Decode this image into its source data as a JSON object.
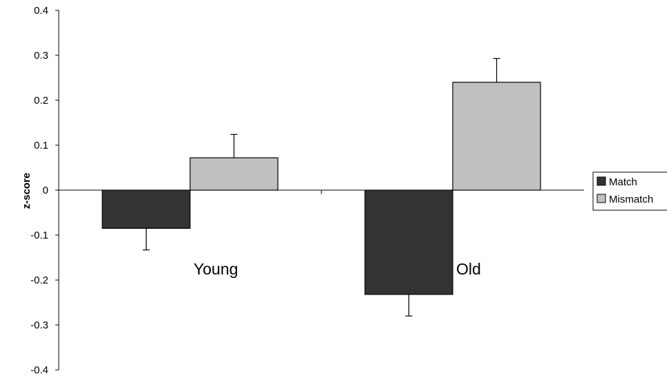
{
  "chart_data": {
    "type": "bar",
    "title": "",
    "xlabel": "",
    "ylabel": "z-score",
    "ylim": [
      -0.4,
      0.4
    ],
    "yticks": [
      "0.4",
      "0.3",
      "0.2",
      "0.1",
      "0",
      "-0.1",
      "-0.2",
      "-0.3",
      "-0.4"
    ],
    "ytick_values": [
      0.4,
      0.3,
      0.2,
      0.1,
      0,
      -0.1,
      -0.2,
      -0.3,
      -0.4
    ],
    "categories": [
      "Young",
      "Old"
    ],
    "grid": false,
    "legend_position": "right",
    "series": [
      {
        "name": "Match",
        "color": "#333333",
        "values": [
          -0.085,
          -0.232
        ],
        "errors": [
          0.048,
          0.048
        ]
      },
      {
        "name": "Mismatch",
        "color": "#c0c0c0",
        "values": [
          0.072,
          0.24
        ],
        "errors": [
          0.052,
          0.053
        ]
      }
    ]
  }
}
